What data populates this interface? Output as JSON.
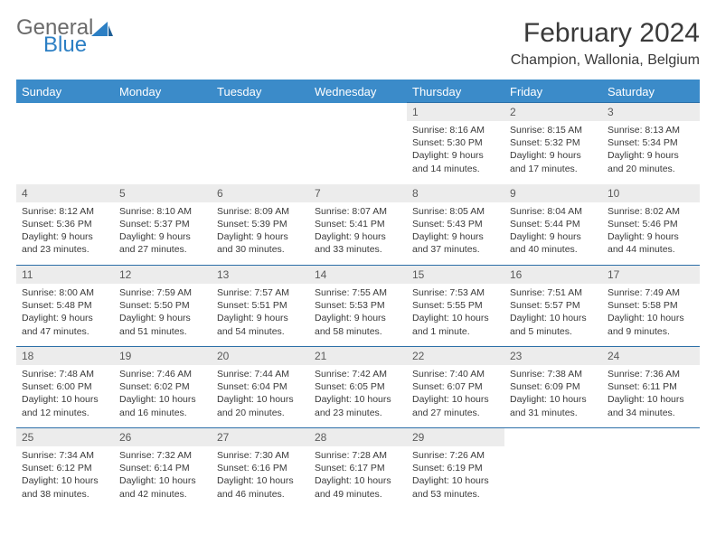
{
  "logo": {
    "general": "General",
    "blue": "Blue",
    "shape_color": "#2c7fc4"
  },
  "header": {
    "title": "February 2024",
    "location": "Champion, Wallonia, Belgium"
  },
  "colors": {
    "header_bg": "#3b8bc9",
    "header_fg": "#ffffff",
    "daynum_bg": "#ececec",
    "rule": "#2c6fa8",
    "text": "#3a3a3a"
  },
  "columns": [
    "Sunday",
    "Monday",
    "Tuesday",
    "Wednesday",
    "Thursday",
    "Friday",
    "Saturday"
  ],
  "weeks": [
    [
      null,
      null,
      null,
      null,
      {
        "n": "1",
        "sunrise": "8:16 AM",
        "sunset": "5:30 PM",
        "dl": "9 hours and 14 minutes."
      },
      {
        "n": "2",
        "sunrise": "8:15 AM",
        "sunset": "5:32 PM",
        "dl": "9 hours and 17 minutes."
      },
      {
        "n": "3",
        "sunrise": "8:13 AM",
        "sunset": "5:34 PM",
        "dl": "9 hours and 20 minutes."
      }
    ],
    [
      {
        "n": "4",
        "sunrise": "8:12 AM",
        "sunset": "5:36 PM",
        "dl": "9 hours and 23 minutes."
      },
      {
        "n": "5",
        "sunrise": "8:10 AM",
        "sunset": "5:37 PM",
        "dl": "9 hours and 27 minutes."
      },
      {
        "n": "6",
        "sunrise": "8:09 AM",
        "sunset": "5:39 PM",
        "dl": "9 hours and 30 minutes."
      },
      {
        "n": "7",
        "sunrise": "8:07 AM",
        "sunset": "5:41 PM",
        "dl": "9 hours and 33 minutes."
      },
      {
        "n": "8",
        "sunrise": "8:05 AM",
        "sunset": "5:43 PM",
        "dl": "9 hours and 37 minutes."
      },
      {
        "n": "9",
        "sunrise": "8:04 AM",
        "sunset": "5:44 PM",
        "dl": "9 hours and 40 minutes."
      },
      {
        "n": "10",
        "sunrise": "8:02 AM",
        "sunset": "5:46 PM",
        "dl": "9 hours and 44 minutes."
      }
    ],
    [
      {
        "n": "11",
        "sunrise": "8:00 AM",
        "sunset": "5:48 PM",
        "dl": "9 hours and 47 minutes."
      },
      {
        "n": "12",
        "sunrise": "7:59 AM",
        "sunset": "5:50 PM",
        "dl": "9 hours and 51 minutes."
      },
      {
        "n": "13",
        "sunrise": "7:57 AM",
        "sunset": "5:51 PM",
        "dl": "9 hours and 54 minutes."
      },
      {
        "n": "14",
        "sunrise": "7:55 AM",
        "sunset": "5:53 PM",
        "dl": "9 hours and 58 minutes."
      },
      {
        "n": "15",
        "sunrise": "7:53 AM",
        "sunset": "5:55 PM",
        "dl": "10 hours and 1 minute."
      },
      {
        "n": "16",
        "sunrise": "7:51 AM",
        "sunset": "5:57 PM",
        "dl": "10 hours and 5 minutes."
      },
      {
        "n": "17",
        "sunrise": "7:49 AM",
        "sunset": "5:58 PM",
        "dl": "10 hours and 9 minutes."
      }
    ],
    [
      {
        "n": "18",
        "sunrise": "7:48 AM",
        "sunset": "6:00 PM",
        "dl": "10 hours and 12 minutes."
      },
      {
        "n": "19",
        "sunrise": "7:46 AM",
        "sunset": "6:02 PM",
        "dl": "10 hours and 16 minutes."
      },
      {
        "n": "20",
        "sunrise": "7:44 AM",
        "sunset": "6:04 PM",
        "dl": "10 hours and 20 minutes."
      },
      {
        "n": "21",
        "sunrise": "7:42 AM",
        "sunset": "6:05 PM",
        "dl": "10 hours and 23 minutes."
      },
      {
        "n": "22",
        "sunrise": "7:40 AM",
        "sunset": "6:07 PM",
        "dl": "10 hours and 27 minutes."
      },
      {
        "n": "23",
        "sunrise": "7:38 AM",
        "sunset": "6:09 PM",
        "dl": "10 hours and 31 minutes."
      },
      {
        "n": "24",
        "sunrise": "7:36 AM",
        "sunset": "6:11 PM",
        "dl": "10 hours and 34 minutes."
      }
    ],
    [
      {
        "n": "25",
        "sunrise": "7:34 AM",
        "sunset": "6:12 PM",
        "dl": "10 hours and 38 minutes."
      },
      {
        "n": "26",
        "sunrise": "7:32 AM",
        "sunset": "6:14 PM",
        "dl": "10 hours and 42 minutes."
      },
      {
        "n": "27",
        "sunrise": "7:30 AM",
        "sunset": "6:16 PM",
        "dl": "10 hours and 46 minutes."
      },
      {
        "n": "28",
        "sunrise": "7:28 AM",
        "sunset": "6:17 PM",
        "dl": "10 hours and 49 minutes."
      },
      {
        "n": "29",
        "sunrise": "7:26 AM",
        "sunset": "6:19 PM",
        "dl": "10 hours and 53 minutes."
      },
      null,
      null
    ]
  ]
}
